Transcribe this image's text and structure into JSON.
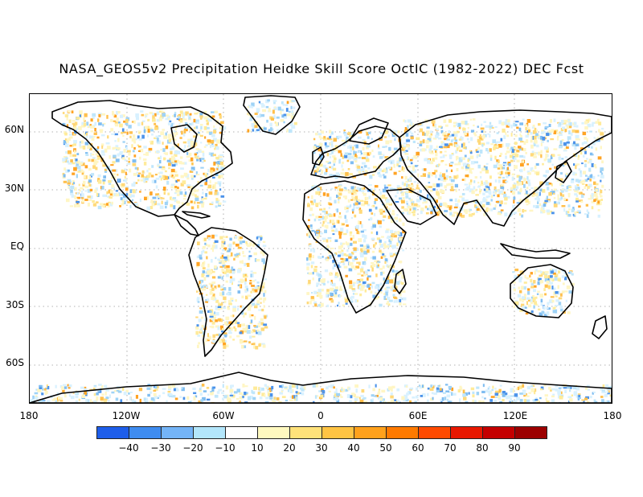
{
  "title": "NASA_GEOS5v2 Precipitation Heidke Skill Score OctIC (1982-2022) DEC Fcst",
  "map": {
    "projection": "equirectangular",
    "lat_labels": [
      "60N",
      "30N",
      "EQ",
      "30S",
      "60S"
    ],
    "lon_labels": [
      "180",
      "120W",
      "60W",
      "0",
      "60E",
      "120E",
      "180"
    ],
    "gridlines": "dotted",
    "pattern": "mostly near-zero skill; scattered light blue (negative) and light yellow/orange (positive) speckles over land; darker blue over central Africa and Antarctica coast; orange over Sahara, Arabia and northern South America"
  },
  "colorbar": {
    "colors": [
      "#1e5eea",
      "#3f8cf0",
      "#74b4f7",
      "#b3e6fb",
      "#ffffff",
      "#fff9bf",
      "#ffe27a",
      "#ffc444",
      "#ffa11c",
      "#ff7a00",
      "#ff4a00",
      "#e81800",
      "#c40000",
      "#9c0000"
    ],
    "tick_labels": [
      "-40",
      "-30",
      "-20",
      "-10",
      "10",
      "20",
      "30",
      "40",
      "50",
      "60",
      "70",
      "80",
      "90"
    ]
  }
}
